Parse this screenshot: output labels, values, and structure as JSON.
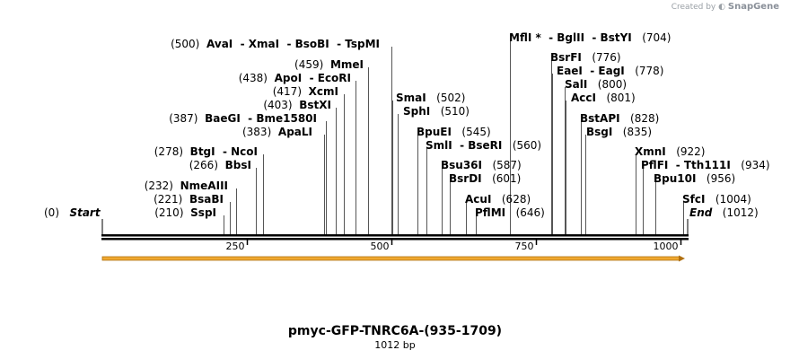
{
  "credit": {
    "created_by": "Created by",
    "brand": "SnapGene"
  },
  "title": "pmyc-GFP-TNRC6A-(935-1709)",
  "subtitle": "1012 bp",
  "sequence_length": 1012,
  "axis_ticks": [
    250,
    500,
    750,
    1000
  ],
  "start_label": {
    "pos": "(0)",
    "name": "Start"
  },
  "end_label": {
    "name": "End",
    "pos": "(1012)"
  },
  "feature_arrow": {
    "color": "#f0a830",
    "outline": "#b07010"
  },
  "sites": [
    {
      "id": "sspi",
      "text": "(210)  SspI",
      "name": "SspI",
      "pos": 210
    },
    {
      "id": "bsabi",
      "text": "(221)  BsaBI",
      "name": "BsaBI",
      "pos": 221
    },
    {
      "id": "nmeaiii",
      "text": "(232)  NmeAIII",
      "name": "NmeAIII",
      "pos": 232
    },
    {
      "id": "bbsi",
      "text": "(266)  BbsI",
      "name": "BbsI",
      "pos": 266
    },
    {
      "id": "btgi",
      "text": "(278)  BtgI  - NcoI",
      "name": "BtgI - NcoI",
      "pos": 278
    },
    {
      "id": "apali",
      "text": "(383)  ApaLI",
      "name": "ApaLI",
      "pos": 383
    },
    {
      "id": "baegi",
      "text": "(387)  BaeGI  - Bme1580I",
      "name": "BaeGI - Bme1580I",
      "pos": 387
    },
    {
      "id": "bstxi",
      "text": "(403)  BstXI",
      "name": "BstXI",
      "pos": 403
    },
    {
      "id": "xcmi",
      "text": "(417)  XcmI",
      "name": "XcmI",
      "pos": 417
    },
    {
      "id": "apoi",
      "text": "(438)  ApoI  - EcoRI",
      "name": "ApoI - EcoRI",
      "pos": 438
    },
    {
      "id": "mmei",
      "text": "(459)  MmeI",
      "name": "MmeI",
      "pos": 459
    },
    {
      "id": "avai",
      "text": "(500)  AvaI  - XmaI  - BsoBI  - TspMI",
      "name": "AvaI - XmaI - BsoBI - TspMI",
      "pos": 500
    },
    {
      "id": "smai",
      "text": "SmaI  (502)",
      "name": "SmaI",
      "pos": 502
    },
    {
      "id": "sphi",
      "text": "SphI  (510)",
      "name": "SphI",
      "pos": 510
    },
    {
      "id": "bpuei",
      "text": "BpuEI  (545)",
      "name": "BpuEI",
      "pos": 545
    },
    {
      "id": "smli",
      "text": "SmlI  - BseRI  (560)",
      "name": "SmlI - BseRI",
      "pos": 560
    },
    {
      "id": "bsu36i",
      "text": "Bsu36I  (587)",
      "name": "Bsu36I",
      "pos": 587
    },
    {
      "id": "bsrdi",
      "text": "BsrDI  (601)",
      "name": "BsrDI",
      "pos": 601
    },
    {
      "id": "acui",
      "text": "AcuI  (628)",
      "name": "AcuI",
      "pos": 628
    },
    {
      "id": "pflmi",
      "text": "PflMI  (646)",
      "name": "PflMI",
      "pos": 646
    },
    {
      "id": "mfli",
      "text": "MflI * - BglII  - BstYI  (704)",
      "name": "MflI * - BglII - BstYI",
      "pos": 704
    },
    {
      "id": "bsrfi",
      "text": "BsrFI  (776)",
      "name": "BsrFI",
      "pos": 776
    },
    {
      "id": "eaei",
      "text": "EaeI  - EagI  (778)",
      "name": "EaeI - EagI",
      "pos": 778
    },
    {
      "id": "sali",
      "text": "SalI  (800)",
      "name": "SalI",
      "pos": 800
    },
    {
      "id": "acci",
      "text": "AccI  (801)",
      "name": "AccI",
      "pos": 801
    },
    {
      "id": "bstapi",
      "text": "BstAPI  (828)",
      "name": "BstAPI",
      "pos": 828
    },
    {
      "id": "bsgi",
      "text": "BsgI  (835)",
      "name": "BsgI",
      "pos": 835
    },
    {
      "id": "xmni",
      "text": "XmnI  (922)",
      "name": "XmnI",
      "pos": 922
    },
    {
      "id": "pflfi",
      "text": "PflFI  - Tth111I  (934)",
      "name": "PflFI - Tth111I",
      "pos": 934
    },
    {
      "id": "bpu10i",
      "text": "Bpu10I  (956)",
      "name": "Bpu10I",
      "pos": 956
    },
    {
      "id": "sfci",
      "text": "SfcI  (1004)",
      "name": "SfcI",
      "pos": 1004
    }
  ]
}
